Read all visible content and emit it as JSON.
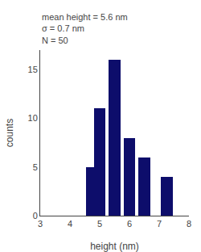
{
  "chart_data": {
    "type": "bar",
    "x": [
      4.75,
      5.0,
      5.5,
      6.0,
      6.5,
      7.25
    ],
    "values": [
      5,
      11,
      16,
      8,
      6,
      4
    ],
    "color": "#0d0d6b",
    "xlabel": "height (nm)",
    "ylabel": "counts",
    "xlim": [
      3,
      8
    ],
    "xticks": [
      3,
      4,
      5,
      6,
      7,
      8
    ],
    "ylim": [
      0,
      17
    ],
    "yticks": [
      0,
      5,
      10,
      15
    ],
    "annotations": [
      "mean height = 5.6 nm",
      "σ = 0.7 nm",
      "N = 50"
    ],
    "grid": false
  }
}
